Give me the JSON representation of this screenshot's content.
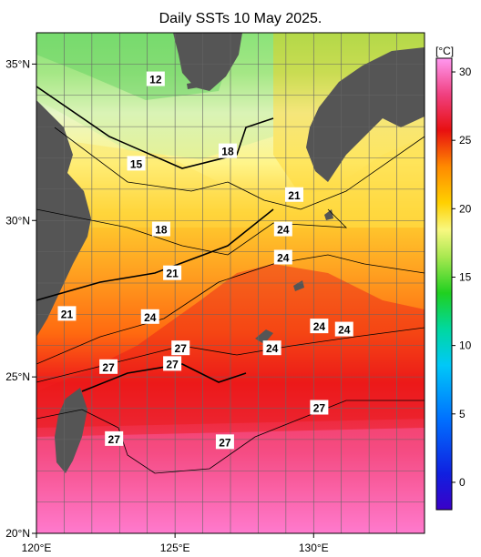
{
  "title": "Daily SSTs 10 May 2025.",
  "map": {
    "lon_range": [
      120,
      134
    ],
    "lat_range": [
      20,
      36
    ],
    "x_ticks": [
      {
        "value": 120,
        "label": "120°E"
      },
      {
        "value": 125,
        "label": "125°E"
      },
      {
        "value": 130,
        "label": "130°E"
      }
    ],
    "y_ticks": [
      {
        "value": 35,
        "label": "35°N"
      },
      {
        "value": 30,
        "label": "30°N"
      },
      {
        "value": 25,
        "label": "25°N"
      },
      {
        "value": 20,
        "label": "20°N"
      }
    ],
    "grid": true
  },
  "colorbar": {
    "unit_label": "[°C]",
    "range": [
      -2,
      31
    ],
    "ticks": [
      0,
      5,
      10,
      15,
      20,
      25,
      30
    ],
    "colors": [
      "#3a00c8",
      "#0044ff",
      "#00b8ff",
      "#00e0a0",
      "#20d020",
      "#a0e850",
      "#ffff80",
      "#ffd000",
      "#ff8a00",
      "#e01010",
      "#ff60c0",
      "#ff90f0"
    ]
  },
  "contour_labels": [
    {
      "text": "12",
      "lon": 124.3,
      "lat": 34.5
    },
    {
      "text": "15",
      "lon": 123.6,
      "lat": 31.8
    },
    {
      "text": "18",
      "lon": 126.9,
      "lat": 32.2
    },
    {
      "text": "18",
      "lon": 124.5,
      "lat": 29.7
    },
    {
      "text": "21",
      "lon": 129.3,
      "lat": 30.8
    },
    {
      "text": "24",
      "lon": 128.9,
      "lat": 29.7
    },
    {
      "text": "24",
      "lon": 128.9,
      "lat": 28.8
    },
    {
      "text": "21",
      "lon": 124.9,
      "lat": 28.3
    },
    {
      "text": "21",
      "lon": 121.1,
      "lat": 27.0
    },
    {
      "text": "24",
      "lon": 124.1,
      "lat": 26.9
    },
    {
      "text": "24",
      "lon": 130.2,
      "lat": 26.6
    },
    {
      "text": "24",
      "lon": 131.1,
      "lat": 26.5
    },
    {
      "text": "24",
      "lon": 128.5,
      "lat": 25.9
    },
    {
      "text": "27",
      "lon": 125.2,
      "lat": 25.9
    },
    {
      "text": "27",
      "lon": 124.9,
      "lat": 25.4
    },
    {
      "text": "27",
      "lon": 122.6,
      "lat": 25.3
    },
    {
      "text": "27",
      "lon": 130.2,
      "lat": 24.0
    },
    {
      "text": "27",
      "lon": 122.8,
      "lat": 23.0
    },
    {
      "text": "27",
      "lon": 126.8,
      "lat": 22.9
    }
  ]
}
